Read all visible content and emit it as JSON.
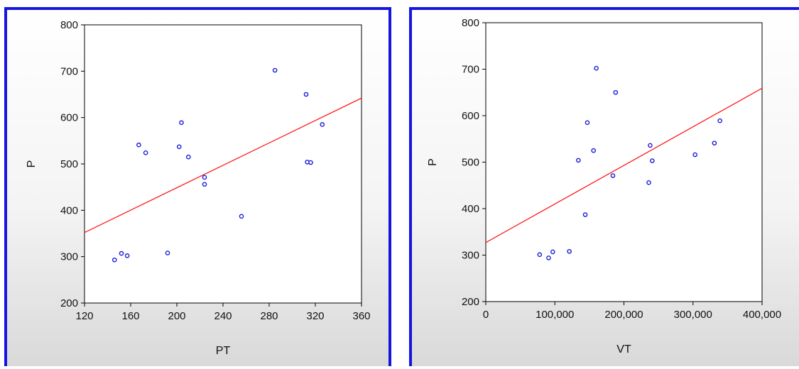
{
  "chart_data": [
    {
      "type": "scatter",
      "xlabel": "PT",
      "ylabel": "P",
      "xlim": [
        120,
        360
      ],
      "ylim": [
        200,
        800
      ],
      "xticks": [
        120,
        160,
        200,
        240,
        280,
        320,
        360
      ],
      "xtick_labels": [
        "120",
        "160",
        "200",
        "240",
        "280",
        "320",
        "360"
      ],
      "yticks": [
        200,
        300,
        400,
        500,
        600,
        700,
        800
      ],
      "ytick_labels": [
        "200",
        "300",
        "400",
        "500",
        "600",
        "700",
        "800"
      ],
      "grid": false,
      "marker_color": "#1a1ad6",
      "fit_color": "#ff1a1a",
      "points": [
        {
          "x": 146,
          "y": 293
        },
        {
          "x": 152,
          "y": 307
        },
        {
          "x": 157,
          "y": 302
        },
        {
          "x": 167,
          "y": 541
        },
        {
          "x": 173,
          "y": 524
        },
        {
          "x": 192,
          "y": 308
        },
        {
          "x": 202,
          "y": 537
        },
        {
          "x": 204,
          "y": 589
        },
        {
          "x": 210,
          "y": 515
        },
        {
          "x": 224,
          "y": 471
        },
        {
          "x": 224,
          "y": 456
        },
        {
          "x": 256,
          "y": 387
        },
        {
          "x": 285,
          "y": 702
        },
        {
          "x": 312,
          "y": 650
        },
        {
          "x": 313,
          "y": 504
        },
        {
          "x": 316,
          "y": 503
        },
        {
          "x": 326,
          "y": 585
        }
      ],
      "fit_line": {
        "x": [
          120,
          360
        ],
        "y": [
          352,
          642
        ]
      }
    },
    {
      "type": "scatter",
      "xlabel": "VT",
      "ylabel": "P",
      "xlim": [
        0,
        400000
      ],
      "ylim": [
        200,
        800
      ],
      "xticks": [
        0,
        100000,
        200000,
        300000,
        400000
      ],
      "xtick_labels": [
        "0",
        "100,000",
        "200,000",
        "300,000",
        "400,000"
      ],
      "yticks": [
        200,
        300,
        400,
        500,
        600,
        700,
        800
      ],
      "ytick_labels": [
        "200",
        "300",
        "400",
        "500",
        "600",
        "700",
        "800"
      ],
      "grid": false,
      "marker_color": "#1a1ad6",
      "fit_color": "#ff1a1a",
      "points": [
        {
          "x": 78000,
          "y": 301
        },
        {
          "x": 91000,
          "y": 294
        },
        {
          "x": 97000,
          "y": 307
        },
        {
          "x": 121000,
          "y": 308
        },
        {
          "x": 134000,
          "y": 504
        },
        {
          "x": 144000,
          "y": 387
        },
        {
          "x": 147000,
          "y": 585
        },
        {
          "x": 156000,
          "y": 525
        },
        {
          "x": 160000,
          "y": 702
        },
        {
          "x": 184000,
          "y": 471
        },
        {
          "x": 188000,
          "y": 650
        },
        {
          "x": 236000,
          "y": 456
        },
        {
          "x": 238000,
          "y": 536
        },
        {
          "x": 241000,
          "y": 503
        },
        {
          "x": 303000,
          "y": 516
        },
        {
          "x": 331000,
          "y": 541
        },
        {
          "x": 339000,
          "y": 589
        }
      ],
      "fit_line": {
        "x": [
          0,
          400000
        ],
        "y": [
          327,
          659
        ]
      }
    }
  ]
}
